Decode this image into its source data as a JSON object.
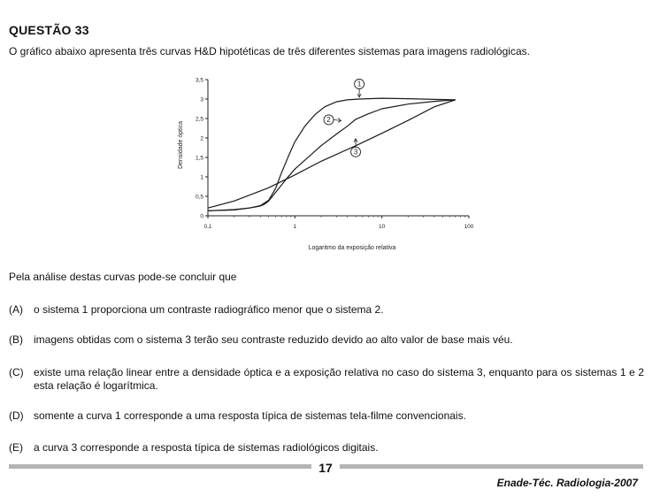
{
  "question": {
    "title": "QUESTÃO 33",
    "intro": "O gráfico abaixo apresenta três curvas H&D hipotéticas de três diferentes sistemas para imagens radiológicas.",
    "lead": "Pela análise destas curvas pode-se concluir que"
  },
  "options": [
    {
      "letter": "(A)",
      "text": "o sistema 1 proporciona um contraste radiográfico menor que o sistema 2."
    },
    {
      "letter": "(B)",
      "text": "imagens obtidas com o sistema 3 terão seu contraste reduzido devido ao alto valor de base mais véu."
    },
    {
      "letter": "(C)",
      "text": "existe uma relação linear entre a densidade óptica e a exposição relativa no caso do sistema 3, enquanto para os sistemas 1 e 2 esta relação é logarítmica."
    },
    {
      "letter": "(D)",
      "text": "somente a curva 1 corresponde a uma resposta típica de sistemas tela-filme convencionais."
    },
    {
      "letter": "(E)",
      "text": "a curva 3 corresponde a resposta típica de sistemas radiológicos digitais."
    }
  ],
  "footer": {
    "page_number": "17",
    "exam_name": "Enade-Téc. Radiologia-2007"
  },
  "chart_data": {
    "type": "line",
    "xlabel": "Logaritmo da exposição relativa",
    "ylabel": "Densidade óptica",
    "x_scale": "log",
    "xlim": [
      0.1,
      100
    ],
    "ylim": [
      0,
      3.5
    ],
    "x_ticks": [
      0.1,
      1,
      10,
      100
    ],
    "x_tick_labels": [
      "0,1",
      "1",
      "10",
      "100"
    ],
    "y_ticks": [
      0,
      0.5,
      1,
      1.5,
      2,
      2.5,
      3,
      3.5
    ],
    "y_tick_labels": [
      "0",
      "0,5",
      "1",
      "1,5",
      "2",
      "2,5",
      "3",
      "3,5"
    ],
    "grid": false,
    "series": [
      {
        "name": "1",
        "x": [
          0.1,
          0.2,
          0.3,
          0.4,
          0.5,
          0.6,
          0.7,
          0.85,
          1,
          1.3,
          1.7,
          2.2,
          3,
          4,
          5.5,
          10,
          20,
          40,
          70
        ],
        "y": [
          0.13,
          0.16,
          0.2,
          0.26,
          0.4,
          0.7,
          1.1,
          1.55,
          1.9,
          2.3,
          2.6,
          2.8,
          2.93,
          2.98,
          3.0,
          3.02,
          3.01,
          2.99,
          2.98
        ]
      },
      {
        "name": "2",
        "x": [
          0.1,
          0.2,
          0.3,
          0.4,
          0.45,
          0.5,
          0.6,
          0.8,
          1,
          1.5,
          2,
          3,
          4,
          5,
          7,
          10,
          20,
          40,
          70
        ],
        "y": [
          0.13,
          0.15,
          0.2,
          0.25,
          0.3,
          0.38,
          0.6,
          0.95,
          1.2,
          1.55,
          1.8,
          2.1,
          2.3,
          2.48,
          2.62,
          2.75,
          2.87,
          2.94,
          2.98
        ]
      },
      {
        "name": "3",
        "x": [
          0.1,
          0.2,
          0.5,
          1,
          2,
          5,
          10,
          20,
          40,
          70
        ],
        "y": [
          0.2,
          0.38,
          0.72,
          1.05,
          1.4,
          1.8,
          2.12,
          2.45,
          2.8,
          2.98
        ]
      }
    ],
    "annotations": [
      {
        "label": "1",
        "x": 5.5,
        "y": 3.0
      },
      {
        "label": "2",
        "x": 4,
        "y": 2.4
      },
      {
        "label": "3",
        "x": 5,
        "y": 2.05
      }
    ]
  }
}
